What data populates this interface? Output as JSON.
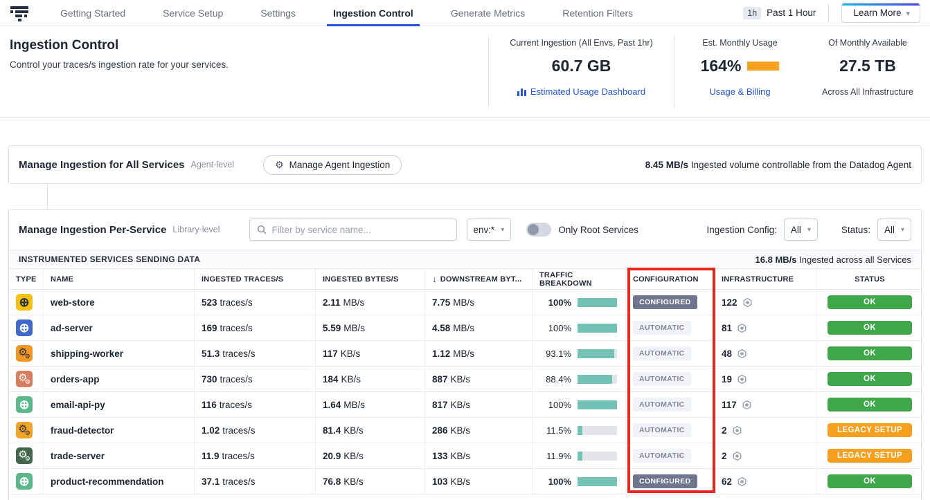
{
  "nav": {
    "tabs": [
      {
        "label": "Getting Started",
        "state": ""
      },
      {
        "label": "Service Setup",
        "state": ""
      },
      {
        "label": "Settings",
        "state": ""
      },
      {
        "label": "Ingestion Control",
        "state": "active"
      },
      {
        "label": "Generate Metrics",
        "state": ""
      },
      {
        "label": "Retention Filters",
        "state": ""
      }
    ],
    "time_badge": "1h",
    "time_label": "Past 1 Hour",
    "learn_more": "Learn More",
    "caret": "▾"
  },
  "header": {
    "title": "Ingestion Control",
    "subtitle": "Control your traces/s ingestion rate for your services.",
    "stats": [
      {
        "label": "Current Ingestion (All Envs, Past 1hr)",
        "value": "60.7 GB",
        "link": "Estimated Usage Dashboard"
      },
      {
        "label": "Est. Monthly Usage",
        "value": "164%",
        "bar_color": "#f8a11c",
        "link": "Usage & Billing"
      },
      {
        "label": "Of Monthly Available",
        "value": "27.5 TB",
        "footnote": "Across All Infrastructure"
      }
    ]
  },
  "agent_section": {
    "title": "Manage Ingestion for All Services",
    "level": "Agent-level",
    "button": "Manage Agent Ingestion",
    "volume": "8.45 MB/s",
    "volume_desc": " Ingested volume controllable from the Datadog Agent"
  },
  "service_section": {
    "title": "Manage Ingestion Per-Service",
    "level": "Library-level",
    "search_placeholder": "Filter by service name...",
    "env_filter": "env:*",
    "toggle_label": "Only Root Services",
    "ingestion_config_label": "Ingestion Config:",
    "ingestion_config_value": "All",
    "status_label": "Status:",
    "status_value": "All",
    "table_title": "INSTRUMENTED SERVICES SENDING DATA",
    "total_rate": "16.8 MB/s",
    "total_desc": " Ingested across all Services"
  },
  "columns": {
    "type": "TYPE",
    "name": "NAME",
    "traces": "INGESTED TRACES/S",
    "bytes": "INGESTED BYTES/S",
    "downstream": "DOWNSTREAM BYT...",
    "sort_arrow": "↓",
    "traffic": "TRAFFIC BREAKDOWN",
    "config": "CONFIGURATION",
    "infra": "INFRASTRUCTURE",
    "status": "STATUS"
  },
  "services": [
    {
      "name": "web-store",
      "icon": "globe dark",
      "icon_bg": "#f5c213",
      "traces_value": "523",
      "traces_unit": "traces/s",
      "bytes_value": "2.11",
      "bytes_unit": "MB/s",
      "downstream_value": "7.75",
      "downstream_unit": "MB/s",
      "traffic_pct": "100%",
      "traffic_width": 100,
      "pct_class": "strong",
      "config": "CONFIGURED",
      "config_variant": "configured",
      "infra": "122",
      "status": "OK",
      "status_variant": "ok"
    },
    {
      "name": "ad-server",
      "icon": "globe light",
      "icon_bg": "#4169c9",
      "traces_value": "169",
      "traces_unit": "traces/s",
      "bytes_value": "5.59",
      "bytes_unit": "MB/s",
      "downstream_value": "4.58",
      "downstream_unit": "MB/s",
      "traffic_pct": "100%",
      "traffic_width": 100,
      "pct_class": "",
      "config": "AUTOMATIC",
      "config_variant": "automatic",
      "infra": "81",
      "status": "OK",
      "status_variant": "ok"
    },
    {
      "name": "shipping-worker",
      "icon": "gears dark",
      "icon_bg": "#f29725",
      "traces_value": "51.3",
      "traces_unit": "traces/s",
      "bytes_value": "117",
      "bytes_unit": "KB/s",
      "downstream_value": "1.12",
      "downstream_unit": "MB/s",
      "traffic_pct": "93.1%",
      "traffic_width": 93.1,
      "pct_class": "",
      "config": "AUTOMATIC",
      "config_variant": "automatic",
      "infra": "48",
      "status": "OK",
      "status_variant": "ok"
    },
    {
      "name": "orders-app",
      "icon": "gears light",
      "icon_bg": "#d97e5c",
      "traces_value": "730",
      "traces_unit": "traces/s",
      "bytes_value": "184",
      "bytes_unit": "KB/s",
      "downstream_value": "887",
      "downstream_unit": "KB/s",
      "traffic_pct": "88.4%",
      "traffic_width": 88.4,
      "pct_class": "",
      "config": "AUTOMATIC",
      "config_variant": "automatic",
      "infra": "19",
      "status": "OK",
      "status_variant": "ok"
    },
    {
      "name": "email-api-py",
      "icon": "globe light",
      "icon_bg": "#5bb88b",
      "traces_value": "116",
      "traces_unit": "traces/s",
      "bytes_value": "1.64",
      "bytes_unit": "MB/s",
      "downstream_value": "817",
      "downstream_unit": "KB/s",
      "traffic_pct": "100%",
      "traffic_width": 100,
      "pct_class": "",
      "config": "AUTOMATIC",
      "config_variant": "automatic",
      "infra": "117",
      "status": "OK",
      "status_variant": "ok"
    },
    {
      "name": "fraud-detector",
      "icon": "gears dark",
      "icon_bg": "#f2a426",
      "traces_value": "1.02",
      "traces_unit": "traces/s",
      "bytes_value": "81.4",
      "bytes_unit": "KB/s",
      "downstream_value": "286",
      "downstream_unit": "KB/s",
      "traffic_pct": "11.5%",
      "traffic_width": 11.5,
      "pct_class": "",
      "config": "AUTOMATIC",
      "config_variant": "automatic",
      "infra": "2",
      "status": "LEGACY SETUP",
      "status_variant": "legacy"
    },
    {
      "name": "trade-server",
      "icon": "gears light",
      "icon_bg": "#41684b",
      "traces_value": "11.9",
      "traces_unit": "traces/s",
      "bytes_value": "20.9",
      "bytes_unit": "KB/s",
      "downstream_value": "133",
      "downstream_unit": "KB/s",
      "traffic_pct": "11.9%",
      "traffic_width": 11.9,
      "pct_class": "",
      "config": "AUTOMATIC",
      "config_variant": "automatic",
      "infra": "2",
      "status": "LEGACY SETUP",
      "status_variant": "legacy"
    },
    {
      "name": "product-recommendation",
      "icon": "globe light",
      "icon_bg": "#5bb88b",
      "traces_value": "37.1",
      "traces_unit": "traces/s",
      "bytes_value": "76.8",
      "bytes_unit": "KB/s",
      "downstream_value": "103",
      "downstream_unit": "KB/s",
      "traffic_pct": "100%",
      "traffic_width": 100,
      "pct_class": "strong",
      "config": "CONFIGURED",
      "config_variant": "configured",
      "infra": "62",
      "status": "OK",
      "status_variant": "ok"
    }
  ],
  "annotation": {
    "color": "#e8281e"
  }
}
